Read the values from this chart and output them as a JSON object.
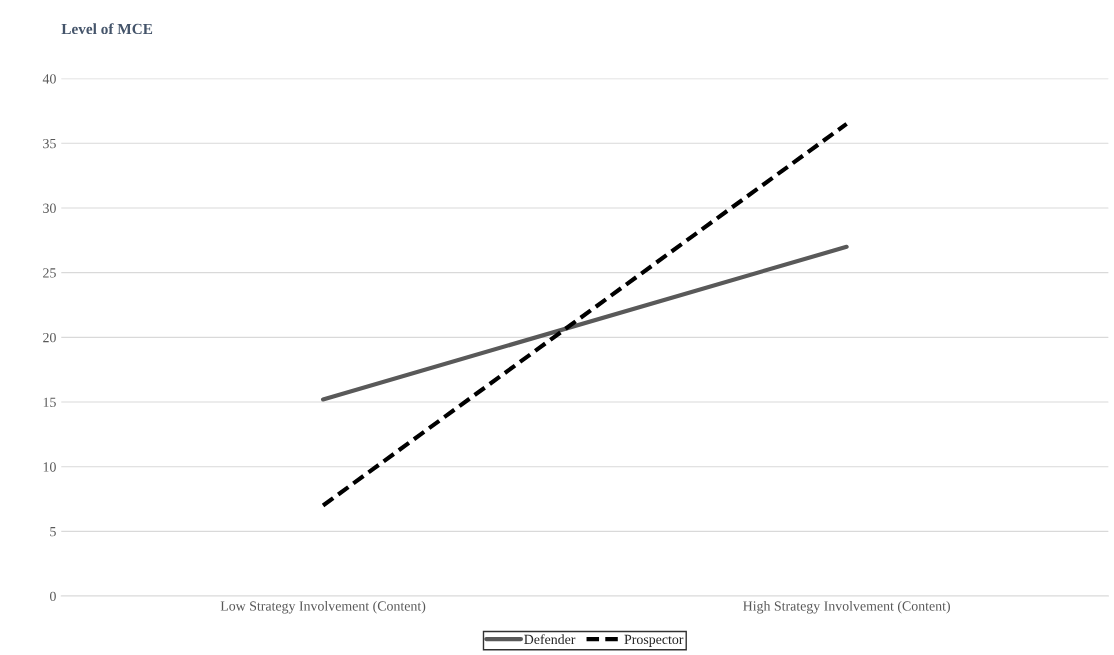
{
  "chart_data": {
    "type": "line",
    "ylabel": "Level of MCE",
    "categories": [
      "Low Strategy Involvement (Content)",
      "High Strategy Involvement (Content)"
    ],
    "series": [
      {
        "name": "Defender",
        "color": "#595959",
        "values": [
          15.2,
          27.0
        ],
        "line_style": "solid"
      },
      {
        "name": "Prospector",
        "color": "#000000",
        "values": [
          7.0,
          36.5
        ],
        "line_style": "dashed"
      }
    ],
    "ylim": [
      0,
      40
    ],
    "yticks": [
      0,
      5,
      10,
      15,
      20,
      25,
      30,
      35,
      40
    ],
    "grid": "y",
    "legend": "bottom",
    "marker": "none"
  }
}
